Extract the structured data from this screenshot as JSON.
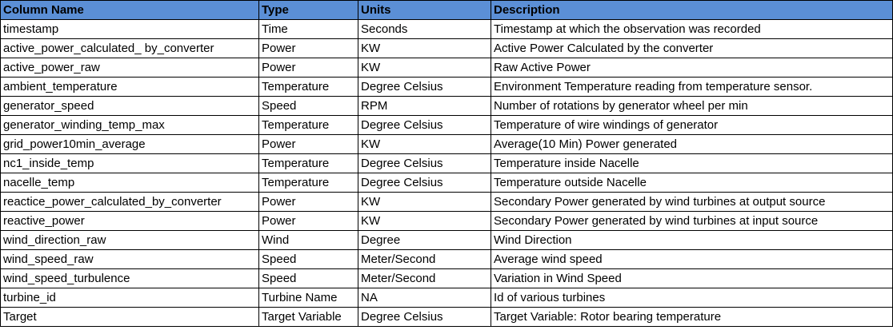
{
  "table": {
    "headers": [
      "Column Name",
      "Type",
      "Units",
      "Description"
    ],
    "rows": [
      [
        "timestamp",
        "Time",
        "Seconds",
        "Timestamp at which the observation was recorded"
      ],
      [
        "active_power_calculated_ by_converter",
        "Power",
        "KW",
        "Active Power Calculated by the converter"
      ],
      [
        "active_power_raw",
        "Power",
        "KW",
        "Raw Active Power"
      ],
      [
        "ambient_temperature",
        "Temperature",
        "Degree Celsius",
        "Environment Temperature reading from temperature sensor."
      ],
      [
        "generator_speed",
        "Speed",
        "RPM",
        "Number of rotations by generator wheel per min"
      ],
      [
        "generator_winding_temp_max",
        "Temperature",
        "Degree Celsius",
        "Temperature of wire windings of generator"
      ],
      [
        "grid_power10min_average",
        "Power",
        "KW",
        "Average(10 Min) Power generated"
      ],
      [
        "nc1_inside_temp",
        "Temperature",
        "Degree Celsius",
        "Temperature inside Nacelle"
      ],
      [
        "nacelle_temp",
        "Temperature",
        "Degree Celsius",
        "Temperature outside Nacelle"
      ],
      [
        "reactice_power_calculated_by_converter",
        "Power",
        "KW",
        "Secondary Power generated by wind turbines at output source"
      ],
      [
        "reactive_power",
        "Power",
        "KW",
        "Secondary Power generated by wind turbines at input source"
      ],
      [
        "wind_direction_raw",
        "Wind",
        "Degree",
        "Wind Direction"
      ],
      [
        "wind_speed_raw",
        "Speed",
        "Meter/Second",
        "Average wind speed"
      ],
      [
        "wind_speed_turbulence",
        "Speed",
        "Meter/Second",
        "Variation in Wind Speed"
      ],
      [
        "turbine_id",
        "Turbine Name",
        "NA",
        "Id of various turbines"
      ],
      [
        "Target",
        "Target Variable",
        "Degree Celsius",
        "Target Variable: Rotor bearing temperature"
      ]
    ]
  },
  "colors": {
    "header_background": "#5b8fd6",
    "border": "#000000",
    "text": "#000000"
  }
}
